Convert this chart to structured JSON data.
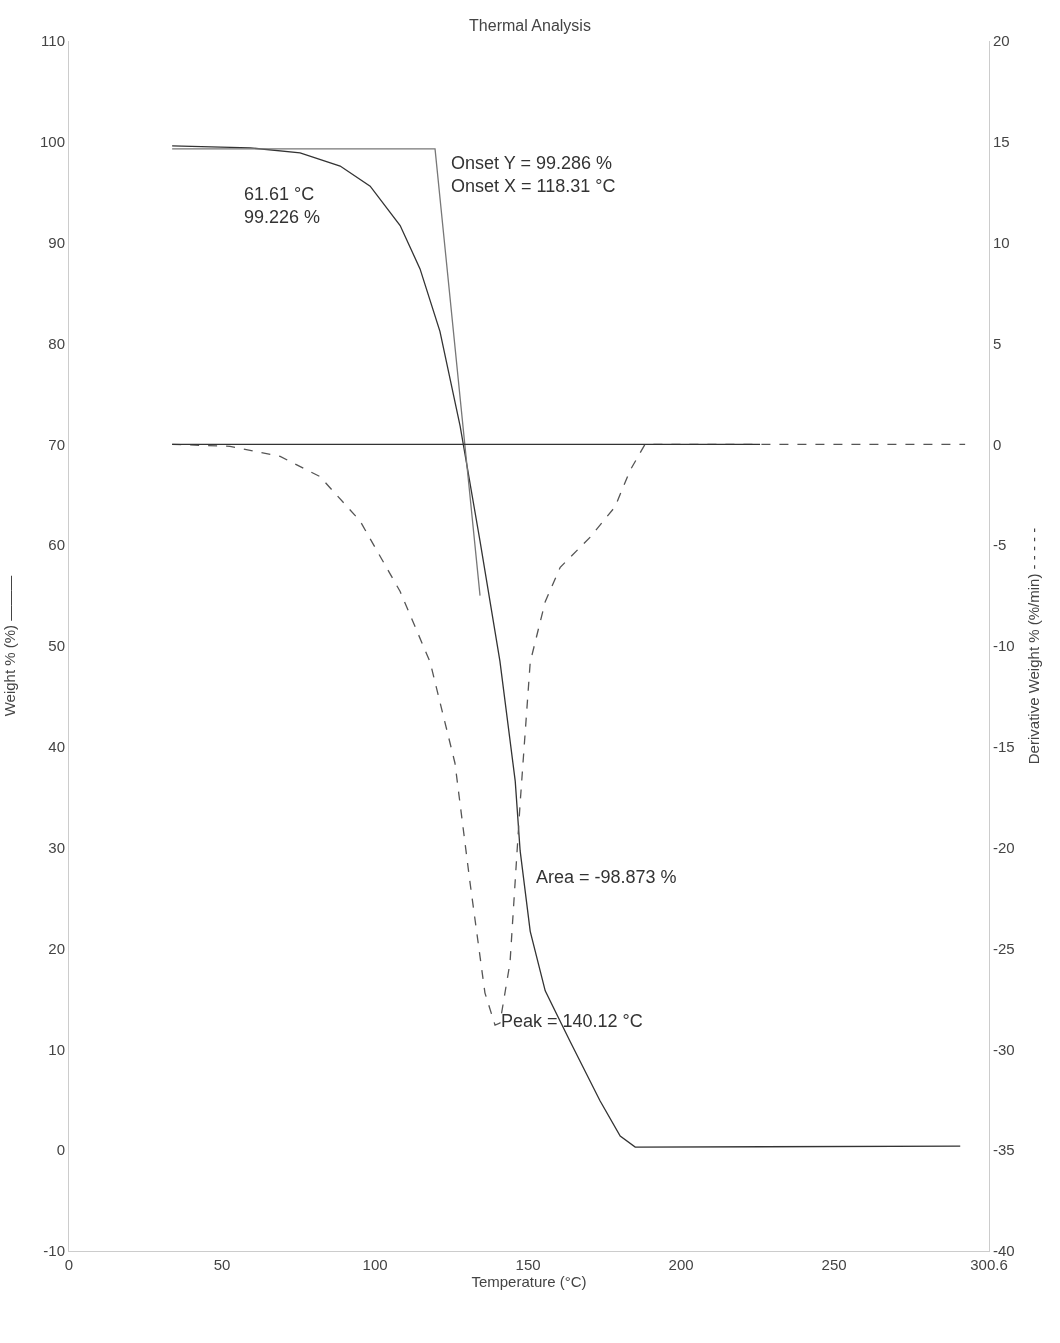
{
  "chart_data": {
    "type": "line",
    "title": "Thermal Analysis",
    "xlabel": "Temperature (°C)",
    "ylabel": "Weight % (%) ———",
    "y2label": "Derivative Weight % (%/min) - - - - -",
    "xlim": [
      0,
      300.6
    ],
    "xticks": [
      0,
      50,
      100,
      150,
      200,
      250,
      300.6
    ],
    "ylim": [
      -10,
      110
    ],
    "yticks": [
      -10,
      0,
      10,
      20,
      30,
      40,
      50,
      60,
      70,
      80,
      90,
      100,
      110
    ],
    "y2lim": [
      -40,
      20
    ],
    "y2ticks": [
      -40,
      -35,
      -30,
      -25,
      -20,
      -15,
      -10,
      -5,
      0,
      5,
      10,
      15,
      20
    ],
    "grid": false,
    "marker": "none",
    "series": [
      {
        "color": "#333333",
        "line_style": "solid",
        "x": [
          33.7,
          59.2,
          75.5,
          88.6,
          98.4,
          108.2,
          114.7,
          121.2,
          127.8,
          134.3,
          140.8,
          145.8,
          147.4,
          150.7,
          155.6,
          163.7,
          173.5,
          180.1,
          185,
          291.2
        ],
        "values": [
          99.6,
          99.4,
          98.9,
          97.6,
          95.6,
          91.7,
          87.4,
          81.2,
          71.8,
          60.4,
          48.5,
          36.6,
          29.7,
          21.7,
          15.8,
          10.8,
          4.9,
          1.4,
          0.3,
          0.4
        ]
      },
      {
        "color": "#555555",
        "line_style": "dashed",
        "axis": "y2",
        "x": [
          33.7,
          52.6,
          69,
          82,
          95.1,
          108.2,
          118,
          126.1,
          131,
          135.9,
          139.2,
          140.8,
          144.1,
          147.4,
          150.7,
          155.6,
          160.5,
          170.3,
          178.4,
          183.3,
          188.2,
          292.8
        ],
        "values": [
          0,
          -0.1,
          -0.6,
          -1.6,
          -3.8,
          -7.3,
          -10.8,
          -15.8,
          -21.7,
          -27.2,
          -28.8,
          -28.7,
          -25.7,
          -17.8,
          -10.8,
          -7.8,
          -6.1,
          -4.6,
          -3.1,
          -1.3,
          0,
          0
        ]
      },
      {
        "color": "#777777",
        "line_style": "solid",
        "x": [
          33.7,
          119.6,
          134.3
        ],
        "values": [
          99.3,
          99.3,
          55
        ]
      },
      {
        "color": "#333333",
        "line_style": "solid",
        "axis": "y2",
        "x": [
          33.7,
          225.8
        ],
        "values": [
          0,
          0
        ]
      }
    ],
    "annotations": [
      {
        "text": "61.61 °C\n99.226 %",
        "x": 61.61,
        "y": 99.226
      },
      {
        "text": "Onset Y = 99.286 %\nOnset X = 118.31 °C",
        "x": 118.31,
        "y": 99.286
      },
      "Area = -98.873 %",
      "Peak = 140.12 °C"
    ]
  }
}
